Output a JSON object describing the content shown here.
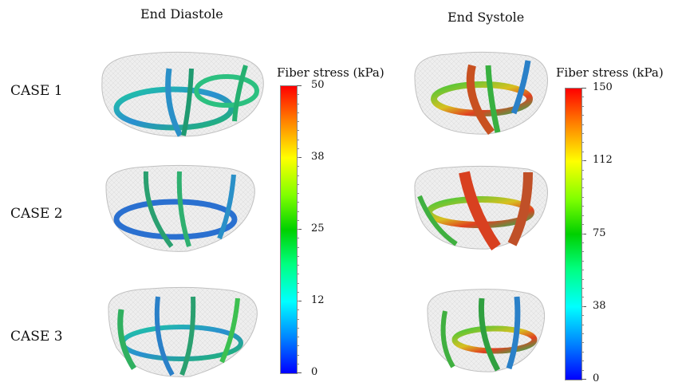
{
  "columns": {
    "diastole": "End Diastole",
    "systole": "End Systole"
  },
  "rows": [
    {
      "label": "CASE 1"
    },
    {
      "label": "CASE 2"
    },
    {
      "label": "CASE 3"
    }
  ],
  "colorbars": {
    "diastole": {
      "title": "Fiber stress (kPa)",
      "ticks": [
        "50",
        "38",
        "25",
        "12",
        "0"
      ],
      "range": [
        0,
        50
      ]
    },
    "systole": {
      "title": "Fiber stress (kPa)",
      "ticks": [
        "150",
        "112",
        "75",
        "38",
        "0"
      ],
      "range": [
        0,
        150
      ]
    }
  },
  "colormap": [
    "#0000ff",
    "#0080ff",
    "#00ffff",
    "#00ff80",
    "#00d000",
    "#80ff00",
    "#ffff00",
    "#ff8000",
    "#ff0000"
  ]
}
